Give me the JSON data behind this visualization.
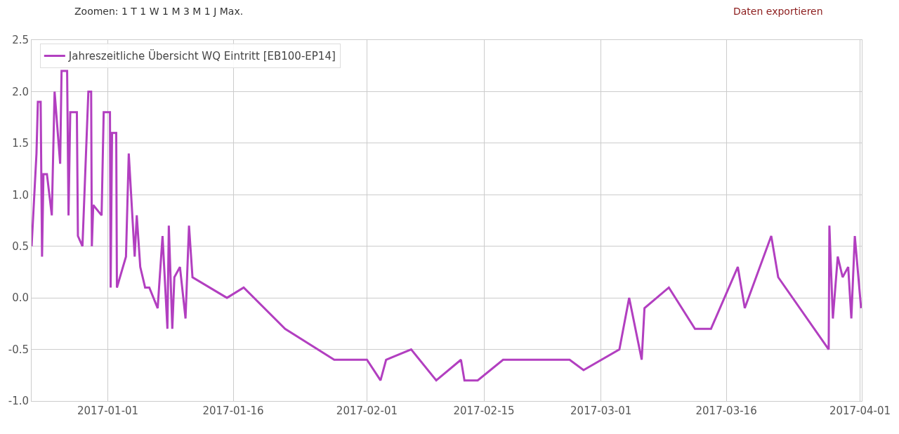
{
  "chart_data": {
    "type": "line",
    "x": [
      "2016-12-22T21:00",
      "2016-12-23T11:00",
      "2016-12-23T15:00",
      "2016-12-23T23:00",
      "2016-12-24T03:00",
      "2016-12-24T07:00",
      "2016-12-24T17:00",
      "2016-12-25T07:00",
      "2016-12-25T15:00",
      "2016-12-26T07:00",
      "2016-12-26T11:00",
      "2016-12-27T03:00",
      "2016-12-27T07:00",
      "2016-12-27T12:00",
      "2016-12-28T07:00",
      "2016-12-28T10:00",
      "2016-12-28T23:00",
      "2016-12-29T16:00",
      "2016-12-30T00:00",
      "2016-12-30T02:00",
      "2016-12-30T06:00",
      "2016-12-31T06:00",
      "2016-12-31T12:00",
      "2017-01-01T06:00",
      "2017-01-01T08:00",
      "2017-01-01T12:00",
      "2017-01-02T00:00",
      "2017-01-02T02:00",
      "2017-01-03T04:00",
      "2017-01-03T12:00",
      "2017-01-04T05:00",
      "2017-01-04T11:00",
      "2017-01-04T21:00",
      "2017-01-05T11:00",
      "2017-01-05T23:00",
      "2017-01-06T23:00",
      "2017-01-07T13:00",
      "2017-01-08T03:00",
      "2017-01-08T07:00",
      "2017-01-08T17:00",
      "2017-01-08T23:00",
      "2017-01-09T15:00",
      "2017-01-10T07:00",
      "2017-01-10T17:00",
      "2017-01-11T03:00",
      "2017-01-15T06:00",
      "2017-01-17T06:00",
      "2017-01-22T05:00",
      "2017-01-28T02:00",
      "2017-02-01T00:00",
      "2017-02-02T15:00",
      "2017-02-03T07:00",
      "2017-02-06T07:00",
      "2017-02-09T07:00",
      "2017-02-12T06:00",
      "2017-02-12T16:00",
      "2017-02-14T06:00",
      "2017-02-17T07:00",
      "2017-02-25T06:00",
      "2017-02-26T22:00",
      "2017-03-03T05:00",
      "2017-03-04T09:00",
      "2017-03-05T21:00",
      "2017-03-06T05:00",
      "2017-03-09T03:00",
      "2017-03-12T06:00",
      "2017-03-14T04:00",
      "2017-03-17T09:00",
      "2017-03-18T05:00",
      "2017-03-21T09:00",
      "2017-03-22T05:00",
      "2017-03-28T06:00",
      "2017-03-28T08:00",
      "2017-03-28T18:00",
      "2017-03-29T08:00",
      "2017-03-29T22:00",
      "2017-03-30T14:00",
      "2017-03-30T23:00",
      "2017-03-31T09:00",
      "2017-04-01T03:00"
    ],
    "series": [
      {
        "name": "Jahreszeitliche Übersicht WQ Eintritt [EB100-EP14]",
        "color": "#b23fc0",
        "values": [
          0.5,
          1.4,
          1.9,
          1.9,
          0.4,
          1.2,
          1.2,
          0.8,
          2.0,
          1.3,
          2.2,
          2.2,
          0.8,
          1.8,
          1.8,
          0.6,
          0.5,
          2.0,
          2.0,
          0.5,
          0.9,
          0.8,
          1.8,
          1.8,
          0.1,
          1.6,
          1.6,
          0.1,
          0.4,
          1.4,
          0.4,
          0.8,
          0.3,
          0.1,
          0.1,
          -0.1,
          0.6,
          -0.3,
          0.7,
          -0.3,
          0.2,
          0.3,
          -0.2,
          0.7,
          0.2,
          0.0,
          0.1,
          -0.3,
          -0.6,
          -0.6,
          -0.8,
          -0.6,
          -0.5,
          -0.8,
          -0.6,
          -0.8,
          -0.8,
          -0.6,
          -0.6,
          -0.7,
          -0.5,
          0.0,
          -0.6,
          -0.1,
          0.1,
          -0.3,
          -0.3,
          0.3,
          -0.1,
          0.6,
          0.2,
          -0.5,
          0.7,
          -0.2,
          0.4,
          0.2,
          0.3,
          -0.2,
          0.6,
          -0.1
        ]
      }
    ],
    "xlim": [
      "2016-12-22T21:00",
      "2017-04-01T05:00"
    ],
    "xticks": [
      "2017-01-01",
      "2017-01-16",
      "2017-02-01",
      "2017-02-15",
      "2017-03-01",
      "2017-03-16",
      "2017-04-01"
    ],
    "ylim": [
      -1.0,
      2.5
    ],
    "yticks": [
      {
        "value": -1.0,
        "label": "-1.0"
      },
      {
        "value": -0.5,
        "label": "-0.5"
      },
      {
        "value": 0.0,
        "label": "0.0"
      },
      {
        "value": 0.5,
        "label": "0.5"
      },
      {
        "value": 1.0,
        "label": "1.0"
      },
      {
        "value": 1.5,
        "label": "1.5"
      },
      {
        "value": 2.0,
        "label": "2.0"
      },
      {
        "value": 2.5,
        "label": "2.5"
      }
    ],
    "annotations": [
      "Zoomen: 1 T 1 W 1 M 3 M 1 J Max.",
      "Daten exportieren"
    ],
    "grid": true,
    "legend": "top left",
    "marker": "none",
    "line_style": "solid"
  }
}
